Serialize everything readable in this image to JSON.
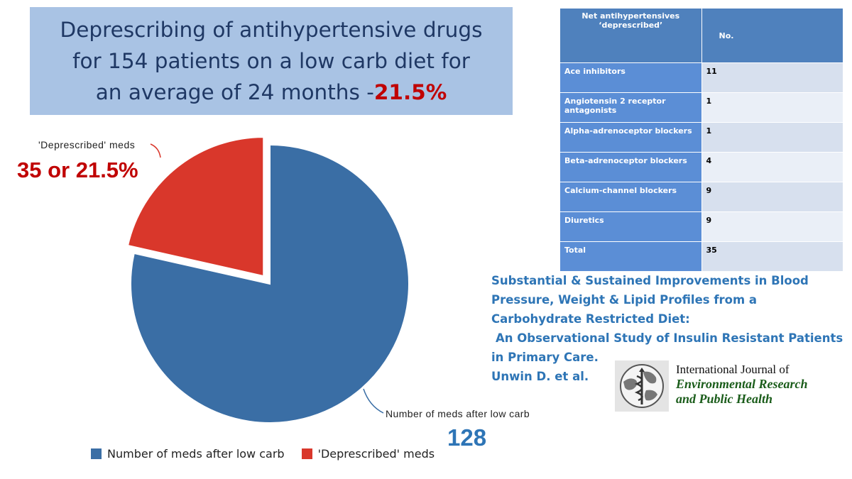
{
  "title": {
    "line1": "Deprescribing of antihypertensive drugs",
    "line2": "for 154 patients on a low carb diet for",
    "line3": "an average of 24 months -",
    "highlight": "21.5%"
  },
  "chart_data": {
    "type": "pie",
    "slices": [
      {
        "label": "Number of meds after low carb",
        "value": 128,
        "color": "#3a6ea5"
      },
      {
        "label": "'Deprescribed' meds",
        "value": 35,
        "color": "#d9372b",
        "exploded": true
      }
    ],
    "annotations": {
      "deprescribed_label": "'Deprescribed' meds",
      "deprescribed_value": "35 or 21.5%",
      "after_label": "Number of meds after low carb",
      "after_value": "128"
    },
    "legend": [
      "Number of meds after low carb",
      "'Deprescribed' meds"
    ],
    "legend_position": "bottom"
  },
  "table": {
    "header_title": "Net antihypertensives ‘deprescribed’",
    "header_no": "No.",
    "rows": [
      {
        "name": "Ace inhibitors",
        "no": "11"
      },
      {
        "name": "Angiotensin 2 receptor antagonists",
        "no": "1"
      },
      {
        "name": "Alpha-adrenoceptor blockers",
        "no": "1"
      },
      {
        "name": "Beta-adrenoceptor blockers",
        "no": "4"
      },
      {
        "name": "Calcium-channel blockers",
        "no": "9"
      },
      {
        "name": "Diuretics",
        "no": "9"
      },
      {
        "name": "Total",
        "no": "35"
      }
    ]
  },
  "citation": {
    "line1": "Substantial & Sustained Improvements in Blood",
    "line2": "Pressure, Weight & Lipid Profiles from a",
    "line3": "Carbohydrate Restricted Diet:",
    "line4": "An Observational Study of Insulin Resistant Patients",
    "line5": "in Primary Care.",
    "line6": "Unwin D. et al."
  },
  "journal": {
    "line1": "International Journal of",
    "line2": "Environmental Research",
    "line3": "and Public Health"
  },
  "colors": {
    "blue_slice": "#3a6ea5",
    "red_slice": "#d9372b",
    "title_bg": "#a9c3e4"
  }
}
